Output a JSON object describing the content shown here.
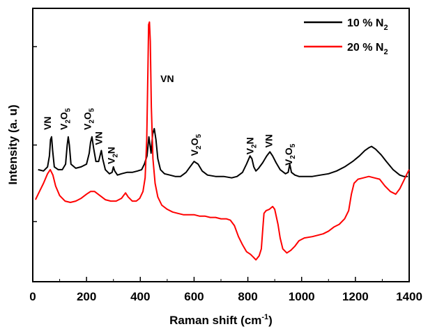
{
  "chart_data": {
    "type": "line",
    "xlabel": "Raman shift (cm⁻¹)",
    "ylabel": "Intensity (a. u)",
    "xlim": [
      0,
      1400
    ],
    "ylim": [
      0,
      10
    ],
    "x_ticks": [
      0,
      200,
      400,
      600,
      800,
      1000,
      1200,
      1400
    ],
    "y_ticks_minor": [
      2.2,
      5.0,
      8.6
    ],
    "legend_position": "top-right",
    "series": [
      {
        "name": "10 % N₂",
        "color": "#000000",
        "points": [
          [
            20,
            4.1
          ],
          [
            40,
            4.05
          ],
          [
            55,
            4.2
          ],
          [
            62,
            4.6
          ],
          [
            66,
            5.2
          ],
          [
            70,
            5.3
          ],
          [
            74,
            4.8
          ],
          [
            80,
            4.2
          ],
          [
            95,
            4.1
          ],
          [
            110,
            4.1
          ],
          [
            122,
            4.3
          ],
          [
            128,
            5.0
          ],
          [
            132,
            5.3
          ],
          [
            136,
            5.0
          ],
          [
            142,
            4.3
          ],
          [
            160,
            4.15
          ],
          [
            180,
            4.2
          ],
          [
            200,
            4.3
          ],
          [
            210,
            4.7
          ],
          [
            215,
            5.1
          ],
          [
            220,
            5.3
          ],
          [
            226,
            4.9
          ],
          [
            235,
            4.4
          ],
          [
            245,
            4.4
          ],
          [
            250,
            4.6
          ],
          [
            255,
            4.8
          ],
          [
            260,
            4.5
          ],
          [
            270,
            4.1
          ],
          [
            285,
            3.95
          ],
          [
            295,
            4.0
          ],
          [
            300,
            4.2
          ],
          [
            305,
            4.05
          ],
          [
            315,
            3.9
          ],
          [
            330,
            3.95
          ],
          [
            350,
            4.0
          ],
          [
            370,
            4.0
          ],
          [
            390,
            4.05
          ],
          [
            405,
            4.1
          ],
          [
            415,
            4.3
          ],
          [
            425,
            4.6
          ],
          [
            432,
            5.3
          ],
          [
            436,
            5.0
          ],
          [
            440,
            4.7
          ],
          [
            446,
            5.4
          ],
          [
            452,
            5.6
          ],
          [
            458,
            5.2
          ],
          [
            465,
            4.5
          ],
          [
            475,
            4.1
          ],
          [
            490,
            3.95
          ],
          [
            510,
            3.9
          ],
          [
            530,
            3.85
          ],
          [
            550,
            3.85
          ],
          [
            570,
            4.0
          ],
          [
            585,
            4.2
          ],
          [
            600,
            4.4
          ],
          [
            615,
            4.3
          ],
          [
            630,
            4.05
          ],
          [
            650,
            3.9
          ],
          [
            680,
            3.85
          ],
          [
            710,
            3.85
          ],
          [
            740,
            3.8
          ],
          [
            760,
            3.85
          ],
          [
            780,
            4.0
          ],
          [
            795,
            4.3
          ],
          [
            808,
            4.6
          ],
          [
            815,
            4.5
          ],
          [
            822,
            4.2
          ],
          [
            830,
            4.05
          ],
          [
            840,
            4.15
          ],
          [
            855,
            4.35
          ],
          [
            870,
            4.6
          ],
          [
            882,
            4.75
          ],
          [
            892,
            4.6
          ],
          [
            905,
            4.35
          ],
          [
            920,
            4.1
          ],
          [
            940,
            3.95
          ],
          [
            950,
            4.0
          ],
          [
            956,
            4.3
          ],
          [
            962,
            4.0
          ],
          [
            975,
            3.9
          ],
          [
            990,
            3.85
          ],
          [
            1010,
            3.85
          ],
          [
            1040,
            3.85
          ],
          [
            1070,
            3.9
          ],
          [
            1100,
            3.95
          ],
          [
            1130,
            4.05
          ],
          [
            1160,
            4.2
          ],
          [
            1190,
            4.4
          ],
          [
            1215,
            4.6
          ],
          [
            1235,
            4.8
          ],
          [
            1250,
            4.9
          ],
          [
            1260,
            4.95
          ],
          [
            1275,
            4.85
          ],
          [
            1295,
            4.65
          ],
          [
            1315,
            4.4
          ],
          [
            1340,
            4.1
          ],
          [
            1365,
            3.9
          ],
          [
            1380,
            3.85
          ],
          [
            1395,
            3.85
          ]
        ]
      },
      {
        "name": "20 % N₂",
        "color": "#ff0000",
        "points": [
          [
            10,
            3.0
          ],
          [
            25,
            3.3
          ],
          [
            40,
            3.6
          ],
          [
            55,
            3.95
          ],
          [
            65,
            4.1
          ],
          [
            75,
            3.9
          ],
          [
            85,
            3.5
          ],
          [
            100,
            3.15
          ],
          [
            120,
            2.95
          ],
          [
            140,
            2.9
          ],
          [
            160,
            2.95
          ],
          [
            180,
            3.05
          ],
          [
            200,
            3.2
          ],
          [
            215,
            3.3
          ],
          [
            230,
            3.3
          ],
          [
            250,
            3.15
          ],
          [
            270,
            3.0
          ],
          [
            290,
            2.95
          ],
          [
            310,
            2.95
          ],
          [
            330,
            3.05
          ],
          [
            345,
            3.25
          ],
          [
            355,
            3.1
          ],
          [
            370,
            2.95
          ],
          [
            385,
            2.95
          ],
          [
            398,
            3.05
          ],
          [
            410,
            3.3
          ],
          [
            418,
            3.8
          ],
          [
            424,
            5.2
          ],
          [
            428,
            7.6
          ],
          [
            431,
            9.4
          ],
          [
            434,
            9.5
          ],
          [
            437,
            8.8
          ],
          [
            441,
            6.4
          ],
          [
            447,
            4.5
          ],
          [
            455,
            3.6
          ],
          [
            465,
            3.1
          ],
          [
            480,
            2.8
          ],
          [
            500,
            2.65
          ],
          [
            520,
            2.55
          ],
          [
            540,
            2.5
          ],
          [
            560,
            2.45
          ],
          [
            580,
            2.45
          ],
          [
            600,
            2.45
          ],
          [
            620,
            2.4
          ],
          [
            640,
            2.4
          ],
          [
            660,
            2.35
          ],
          [
            680,
            2.35
          ],
          [
            700,
            2.3
          ],
          [
            720,
            2.3
          ],
          [
            735,
            2.25
          ],
          [
            750,
            2.05
          ],
          [
            765,
            1.65
          ],
          [
            780,
            1.35
          ],
          [
            795,
            1.1
          ],
          [
            810,
            1.0
          ],
          [
            820,
            0.9
          ],
          [
            830,
            0.8
          ],
          [
            842,
            0.95
          ],
          [
            850,
            1.2
          ],
          [
            856,
            2.0
          ],
          [
            860,
            2.5
          ],
          [
            868,
            2.6
          ],
          [
            880,
            2.65
          ],
          [
            892,
            2.75
          ],
          [
            900,
            2.65
          ],
          [
            912,
            2.1
          ],
          [
            920,
            1.6
          ],
          [
            930,
            1.2
          ],
          [
            945,
            1.05
          ],
          [
            960,
            1.15
          ],
          [
            975,
            1.3
          ],
          [
            990,
            1.5
          ],
          [
            1010,
            1.6
          ],
          [
            1040,
            1.65
          ],
          [
            1060,
            1.7
          ],
          [
            1080,
            1.75
          ],
          [
            1100,
            1.85
          ],
          [
            1120,
            2.0
          ],
          [
            1140,
            2.1
          ],
          [
            1160,
            2.3
          ],
          [
            1175,
            2.6
          ],
          [
            1185,
            3.2
          ],
          [
            1195,
            3.6
          ],
          [
            1210,
            3.75
          ],
          [
            1230,
            3.8
          ],
          [
            1250,
            3.85
          ],
          [
            1270,
            3.8
          ],
          [
            1290,
            3.75
          ],
          [
            1310,
            3.5
          ],
          [
            1330,
            3.3
          ],
          [
            1350,
            3.2
          ],
          [
            1365,
            3.4
          ],
          [
            1380,
            3.7
          ],
          [
            1392,
            3.95
          ],
          [
            1400,
            4.1
          ]
        ]
      }
    ],
    "annotations": [
      {
        "main": "VN",
        "x": 68,
        "y": 5.55,
        "rotate": -90
      },
      {
        "main": "V",
        "sub1": "2",
        "mid": "O",
        "sub2": "5",
        "x": 128,
        "y": 5.55,
        "rotate": -90
      },
      {
        "main": "V",
        "sub1": "2",
        "mid": "O",
        "sub2": "5",
        "x": 216,
        "y": 5.55,
        "rotate": -90
      },
      {
        "main": "VN",
        "x": 258,
        "y": 5.0,
        "rotate": -90
      },
      {
        "main": "V",
        "sub1": "2",
        "mid": "N",
        "x": 305,
        "y": 4.3,
        "rotate": -90
      },
      {
        "main": "VN",
        "x": 500,
        "y": 7.3,
        "rotate": 0
      },
      {
        "main": "V",
        "sub1": "2",
        "mid": "O",
        "sub2": "5",
        "x": 615,
        "y": 4.6,
        "rotate": -90
      },
      {
        "main": "V",
        "sub1": "2",
        "mid": "N",
        "x": 820,
        "y": 4.65,
        "rotate": -90
      },
      {
        "main": "VN",
        "x": 890,
        "y": 4.9,
        "rotate": -90
      },
      {
        "main": "V",
        "sub1": "2",
        "mid": "O",
        "sub2": "5",
        "x": 965,
        "y": 4.25,
        "rotate": -90
      }
    ]
  }
}
